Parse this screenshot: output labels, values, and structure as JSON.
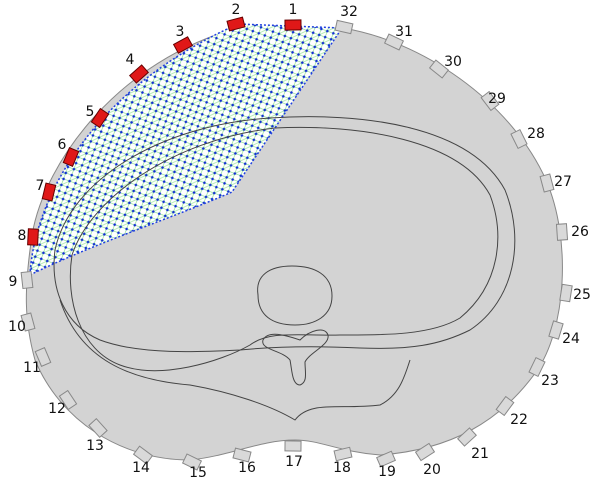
{
  "electrodes": [
    {
      "label": "1",
      "active": true
    },
    {
      "label": "2",
      "active": true
    },
    {
      "label": "3",
      "active": true
    },
    {
      "label": "4",
      "active": true
    },
    {
      "label": "5",
      "active": true
    },
    {
      "label": "6",
      "active": true
    },
    {
      "label": "7",
      "active": true
    },
    {
      "label": "8",
      "active": true
    },
    {
      "label": "9",
      "active": false
    },
    {
      "label": "10",
      "active": false
    },
    {
      "label": "11",
      "active": false
    },
    {
      "label": "12",
      "active": false
    },
    {
      "label": "13",
      "active": false
    },
    {
      "label": "14",
      "active": false
    },
    {
      "label": "15",
      "active": false
    },
    {
      "label": "16",
      "active": false
    },
    {
      "label": "17",
      "active": false
    },
    {
      "label": "18",
      "active": false
    },
    {
      "label": "19",
      "active": false
    },
    {
      "label": "20",
      "active": false
    },
    {
      "label": "21",
      "active": false
    },
    {
      "label": "22",
      "active": false
    },
    {
      "label": "23",
      "active": false
    },
    {
      "label": "24",
      "active": false
    },
    {
      "label": "25",
      "active": false
    },
    {
      "label": "26",
      "active": false
    },
    {
      "label": "27",
      "active": false
    },
    {
      "label": "28",
      "active": false
    },
    {
      "label": "29",
      "active": false
    },
    {
      "label": "30",
      "active": false
    },
    {
      "label": "31",
      "active": false
    },
    {
      "label": "32",
      "active": false
    }
  ]
}
